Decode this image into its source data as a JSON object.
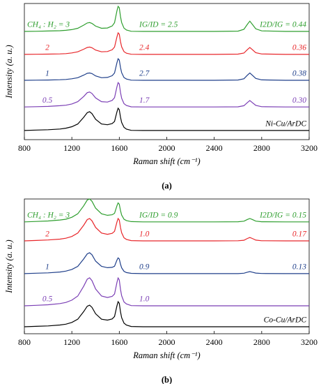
{
  "chart_data": [
    {
      "type": "line",
      "panel": "(a)",
      "x_label": "Raman shift (cm⁻¹)",
      "y_label": "Intensity (a. u.)",
      "x": [
        800,
        900,
        1000,
        1100,
        1150,
        1200,
        1250,
        1300,
        1330,
        1350,
        1370,
        1400,
        1450,
        1500,
        1540,
        1560,
        1580,
        1590,
        1600,
        1610,
        1620,
        1640,
        1660,
        1700,
        1800,
        2000,
        2200,
        2400,
        2600,
        2650,
        2680,
        2700,
        2720,
        2750,
        2800,
        3000,
        3200
      ],
      "xlim": [
        800,
        3200
      ],
      "xticks": [
        800,
        1200,
        1600,
        2000,
        2400,
        2800,
        3200
      ],
      "ylim": [
        0,
        100
      ],
      "series": [
        {
          "name": "Ni-Cu/ArDC",
          "color": "#000000",
          "values": [
            6.7,
            7.0,
            7.3,
            7.8,
            8.4,
            9.5,
            11.5,
            16.4,
            19.8,
            20.5,
            19.1,
            15.0,
            11.5,
            10.9,
            11.8,
            13.4,
            20.3,
            23.1,
            22.0,
            16.6,
            12.6,
            9.0,
            7.7,
            6.8,
            6.7,
            6.7,
            6.7,
            6.7,
            6.7,
            6.7,
            6.7,
            6.7,
            6.7,
            6.7,
            6.7,
            6.7,
            6.7
          ]
        },
        {
          "name": "0.5",
          "color": "#7b3fb5",
          "ratio_labels": [
            "1.7",
            "0.30"
          ],
          "values": [
            24,
            24.2,
            24.4,
            24.9,
            25.3,
            26.2,
            27.9,
            31.7,
            34.5,
            35,
            33.9,
            30.6,
            27.9,
            27.6,
            28.8,
            30.8,
            38.7,
            41.9,
            40.9,
            34.8,
            30.4,
            26.4,
            25.1,
            24.1,
            24,
            24,
            24,
            24,
            24.1,
            24.9,
            27.3,
            28.7,
            27.3,
            25.2,
            24.2,
            24,
            24
          ]
        },
        {
          "name": "1",
          "color": "#1f3f8a",
          "ratio_labels": [
            "2.7",
            "0.38"
          ],
          "values": [
            43.6,
            43.7,
            43.8,
            44.0,
            44.2,
            44.7,
            45.5,
            47.4,
            48.7,
            49.0,
            48.5,
            46.8,
            45.5,
            45.7,
            47.0,
            49.0,
            56.4,
            59.4,
            58.5,
            53.1,
            49.2,
            45.6,
            44.5,
            43.7,
            43.6,
            43.6,
            43.6,
            43.6,
            43.8,
            44.7,
            47.4,
            49.0,
            47.4,
            45.0,
            43.9,
            43.6,
            43.6
          ]
        },
        {
          "name": "2",
          "color": "#e8262a",
          "ratio_labels": [
            "2.4",
            "0.36"
          ],
          "values": [
            62.6,
            62.7,
            62.8,
            63.0,
            63.2,
            63.7,
            64.5,
            66.4,
            67.7,
            68.0,
            67.5,
            65.8,
            64.5,
            64.7,
            66.0,
            68.0,
            75.4,
            78.4,
            77.5,
            72.1,
            68.2,
            64.6,
            63.5,
            62.7,
            62.6,
            62.6,
            62.6,
            62.6,
            62.8,
            63.6,
            66.2,
            67.7,
            66.2,
            63.9,
            62.9,
            62.6,
            62.6
          ]
        },
        {
          "name": "CH₄ : H₂ = 3",
          "color": "#2e9e2e",
          "ratio_labels": [
            "IG/ID = 2.5",
            "I2D/IG = 0.44"
          ],
          "values": [
            79.5,
            79.6,
            79.8,
            80.0,
            80.3,
            80.8,
            81.8,
            84.1,
            85.7,
            86.0,
            85.4,
            83.4,
            81.8,
            82.0,
            83.5,
            85.9,
            94.5,
            97.9,
            96.9,
            90.5,
            86.0,
            81.9,
            80.5,
            79.6,
            79.5,
            79.5,
            79.5,
            79.5,
            79.7,
            81.0,
            84.8,
            87.0,
            84.8,
            81.4,
            79.9,
            79.5,
            79.5
          ]
        }
      ]
    },
    {
      "type": "line",
      "panel": "(b)",
      "x_label": "Raman shift (cm⁻¹)",
      "y_label": "Intensity (a. u.)",
      "x": [
        800,
        900,
        1000,
        1100,
        1150,
        1200,
        1250,
        1300,
        1330,
        1350,
        1370,
        1400,
        1450,
        1500,
        1540,
        1560,
        1580,
        1590,
        1600,
        1610,
        1620,
        1640,
        1660,
        1700,
        1800,
        2000,
        2200,
        2400,
        2600,
        2650,
        2680,
        2700,
        2720,
        2750,
        2800,
        3000,
        3200
      ],
      "xlim": [
        800,
        3200
      ],
      "xticks": [
        800,
        1200,
        1600,
        2000,
        2400,
        2800,
        3200
      ],
      "ylim": [
        0,
        100
      ],
      "series": [
        {
          "name": "Co-Cu/ArDC",
          "color": "#000000",
          "values": [
            5.2,
            5.5,
            5.8,
            6.5,
            7.1,
            8.4,
            10.8,
            16.4,
            20.4,
            21.2,
            19.6,
            14.8,
            10.8,
            10.1,
            11.0,
            12.8,
            20.6,
            23.8,
            22.6,
            16.4,
            11.9,
            7.8,
            6.4,
            5.4,
            5.2,
            5.2,
            5.2,
            5.2,
            5.2,
            5.2,
            5.2,
            5.2,
            5.2,
            5.2,
            5.2,
            5.2,
            5.2
          ]
        },
        {
          "name": "0.5",
          "color": "#7b3fb5",
          "ratio_labels": [
            "1.0"
          ],
          "values": [
            20.7,
            21.1,
            21.5,
            22.4,
            23.2,
            24.9,
            28.0,
            35.3,
            40.5,
            41.5,
            39.4,
            33.2,
            28.0,
            26.9,
            27.7,
            29.5,
            38.0,
            41.4,
            40.0,
            33.1,
            28.2,
            23.6,
            22.1,
            20.9,
            20.7,
            20.7,
            20.7,
            20.7,
            20.7,
            20.7,
            20.7,
            20.7,
            20.7,
            20.7,
            20.7,
            20.7,
            20.7
          ]
        },
        {
          "name": "1",
          "color": "#1f3f8a",
          "ratio_labels": [
            "0.9",
            "0.13"
          ],
          "values": [
            44.6,
            44.9,
            45.2,
            45.8,
            46.5,
            47.7,
            50.0,
            55.5,
            59.3,
            60.1,
            58.6,
            53.9,
            50.0,
            49.0,
            49.3,
            50.1,
            54.6,
            56.3,
            55.5,
            51.7,
            48.9,
            46.3,
            45.4,
            44.8,
            44.6,
            44.6,
            44.6,
            44.6,
            44.6,
            44.9,
            45.7,
            46.1,
            45.7,
            45.0,
            44.7,
            44.6,
            44.6
          ]
        },
        {
          "name": "2",
          "color": "#e8262a",
          "ratio_labels": [
            "1.0",
            "0.17"
          ],
          "values": [
            68.9,
            69.2,
            69.6,
            70.2,
            70.9,
            72.2,
            74.7,
            80.5,
            84.7,
            85.5,
            83.8,
            78.9,
            74.7,
            73.8,
            74.5,
            76.0,
            82.8,
            85.5,
            84.4,
            78.9,
            74.9,
            71.2,
            70.0,
            69.1,
            68.9,
            68.9,
            68.9,
            68.9,
            69.0,
            69.4,
            70.7,
            71.4,
            70.7,
            69.5,
            69.0,
            68.9,
            68.9
          ]
        },
        {
          "name": "CH₄ : H₂ = 3",
          "color": "#2e9e2e",
          "ratio_labels": [
            "IG/ID = 0.9",
            "I2D/IG = 0.15"
          ],
          "values": [
            83,
            83.3,
            83.7,
            84.4,
            85.0,
            86.4,
            89.0,
            94.9,
            99.2,
            100,
            98.3,
            93.2,
            89.0,
            87.9,
            88.3,
            89.4,
            94.9,
            97.1,
            96.1,
            91.5,
            88.1,
            85.0,
            84.0,
            83.2,
            83,
            83,
            83,
            83,
            83.1,
            83.5,
            84.8,
            85.5,
            84.8,
            83.6,
            83.1,
            83,
            83
          ]
        }
      ]
    }
  ]
}
